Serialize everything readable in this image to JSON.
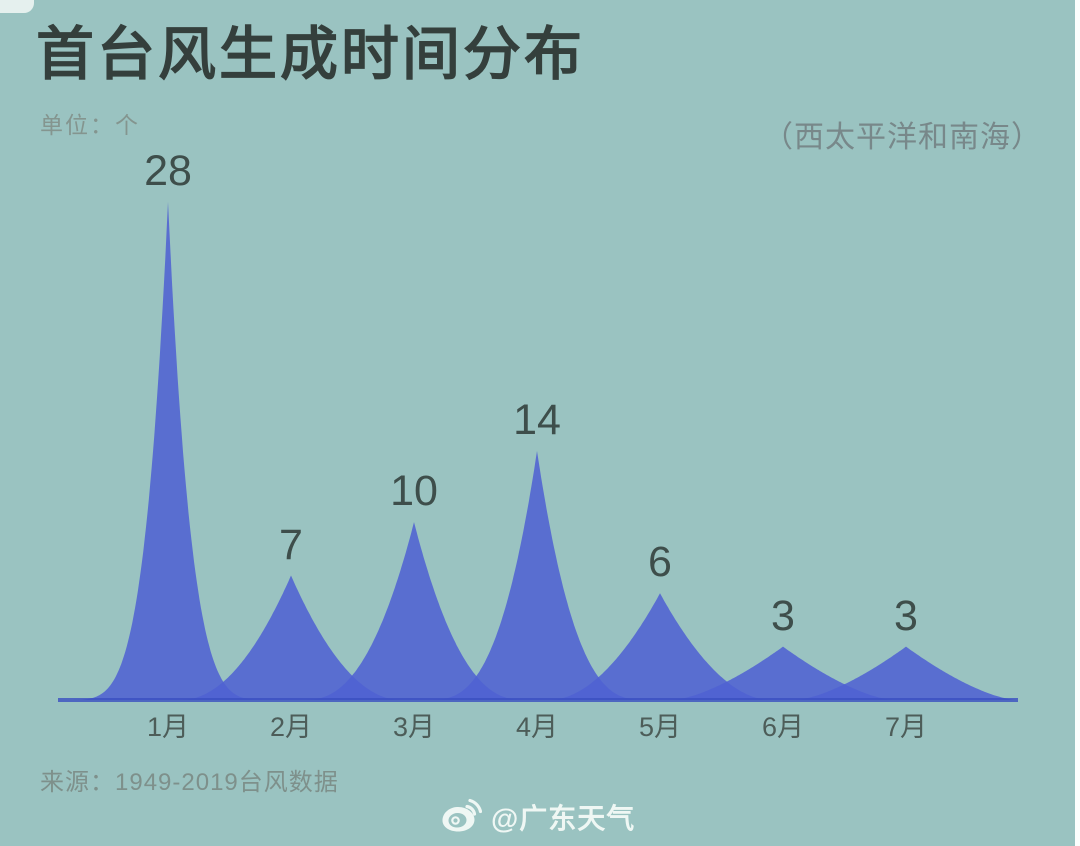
{
  "header": {
    "title": "首台风生成时间分布",
    "unit_label": "单位：个",
    "region_label": "（西太平洋和南海）"
  },
  "footer": {
    "source": "来源：1949-2019台风数据",
    "watermark_handle": "@广东天气",
    "watermark_icon": "weibo-icon"
  },
  "colors": {
    "background": "#9ac3c1",
    "peak_fill": "#4f62d2",
    "baseline_line": "#3a4fc0",
    "title_text": "#343f3c",
    "value_text": "#3e4e4b",
    "month_text": "#4d5d59",
    "muted_text": "#7e908b",
    "watermark_text": "#f3faf7"
  },
  "chart_data": {
    "type": "area",
    "title": "首台风生成时间分布",
    "unit": "个",
    "region": "西太平洋和南海",
    "categories": [
      "1月",
      "2月",
      "3月",
      "4月",
      "5月",
      "6月",
      "7月"
    ],
    "values": [
      28,
      7,
      10,
      14,
      6,
      3,
      3
    ],
    "ylim": [
      0,
      28
    ],
    "grid": false,
    "legend": false,
    "data_labels": true,
    "source": "1949-2019台风数据"
  }
}
